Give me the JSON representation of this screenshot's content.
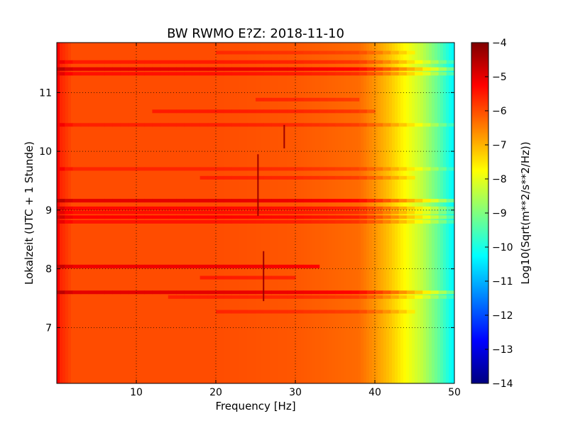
{
  "chart_data": {
    "type": "heatmap",
    "title": "BW RWMO E?Z: 2018-11-10",
    "xlabel": "Frequency [Hz]",
    "ylabel": "Lokalzeit (UTC + 1 Stunde)",
    "xlim": [
      0,
      50
    ],
    "ylim": [
      11.85,
      6.05
    ],
    "x_ticks": [
      10,
      20,
      30,
      40,
      50
    ],
    "y_ticks": [
      7,
      8,
      9,
      10,
      11
    ],
    "grid": true,
    "colormap": "jet",
    "colorbar": {
      "label": "Log10(Sqrt(m**2/s**2/Hz))",
      "range": [
        -14,
        -4
      ],
      "ticks": [
        -4,
        -5,
        -6,
        -7,
        -8,
        -9,
        -10,
        -11,
        -12,
        -13,
        -14
      ]
    },
    "spectral_profile": {
      "frequency_hz": [
        0,
        0.5,
        2,
        10,
        20,
        30,
        38,
        40,
        42,
        44,
        46,
        48,
        50
      ],
      "log10_level": [
        -5.0,
        -5.6,
        -6.0,
        -6.0,
        -6.0,
        -6.1,
        -6.3,
        -6.7,
        -7.2,
        -7.8,
        -8.4,
        -9.3,
        -10.4
      ]
    },
    "bands": [
      {
        "time_h": 7.27,
        "f0": 20,
        "f1": 45,
        "delta": 0.4
      },
      {
        "time_h": 7.52,
        "f0": 14,
        "f1": 50,
        "delta": 0.45
      },
      {
        "time_h": 7.6,
        "f0": 0,
        "f1": 50,
        "delta": 1.0
      },
      {
        "time_h": 7.85,
        "f0": 18,
        "f1": 30,
        "delta": 0.5
      },
      {
        "time_h": 8.04,
        "f0": 0,
        "f1": 33,
        "delta": 0.9
      },
      {
        "time_h": 8.8,
        "f0": 0,
        "f1": 50,
        "delta": 0.55
      },
      {
        "time_h": 8.88,
        "f0": 0,
        "f1": 50,
        "delta": 0.75
      },
      {
        "time_h": 8.96,
        "f0": 0,
        "f1": 50,
        "delta": 0.6
      },
      {
        "time_h": 9.03,
        "f0": 0,
        "f1": 50,
        "delta": 0.7
      },
      {
        "time_h": 9.16,
        "f0": 0,
        "f1": 50,
        "delta": 1.0
      },
      {
        "time_h": 9.55,
        "f0": 18,
        "f1": 45,
        "delta": 0.45
      },
      {
        "time_h": 9.7,
        "f0": 0,
        "f1": 50,
        "delta": 0.4
      },
      {
        "time_h": 10.45,
        "f0": 0,
        "f1": 50,
        "delta": 0.45
      },
      {
        "time_h": 10.68,
        "f0": 12,
        "f1": 40,
        "delta": 0.5
      },
      {
        "time_h": 10.88,
        "f0": 25,
        "f1": 38,
        "delta": 0.45
      },
      {
        "time_h": 11.32,
        "f0": 0,
        "f1": 50,
        "delta": 0.6
      },
      {
        "time_h": 11.4,
        "f0": 0,
        "f1": 50,
        "delta": 1.0
      },
      {
        "time_h": 11.52,
        "f0": 0,
        "f1": 50,
        "delta": 0.5
      },
      {
        "time_h": 11.68,
        "f0": 20,
        "f1": 45,
        "delta": 0.35
      }
    ],
    "lines": [
      {
        "f_hz": 26.0,
        "t0": 7.45,
        "t1": 8.3
      },
      {
        "f_hz": 25.3,
        "t0": 8.9,
        "t1": 9.95
      },
      {
        "f_hz": 28.6,
        "t0": 10.05,
        "t1": 10.45
      }
    ]
  }
}
